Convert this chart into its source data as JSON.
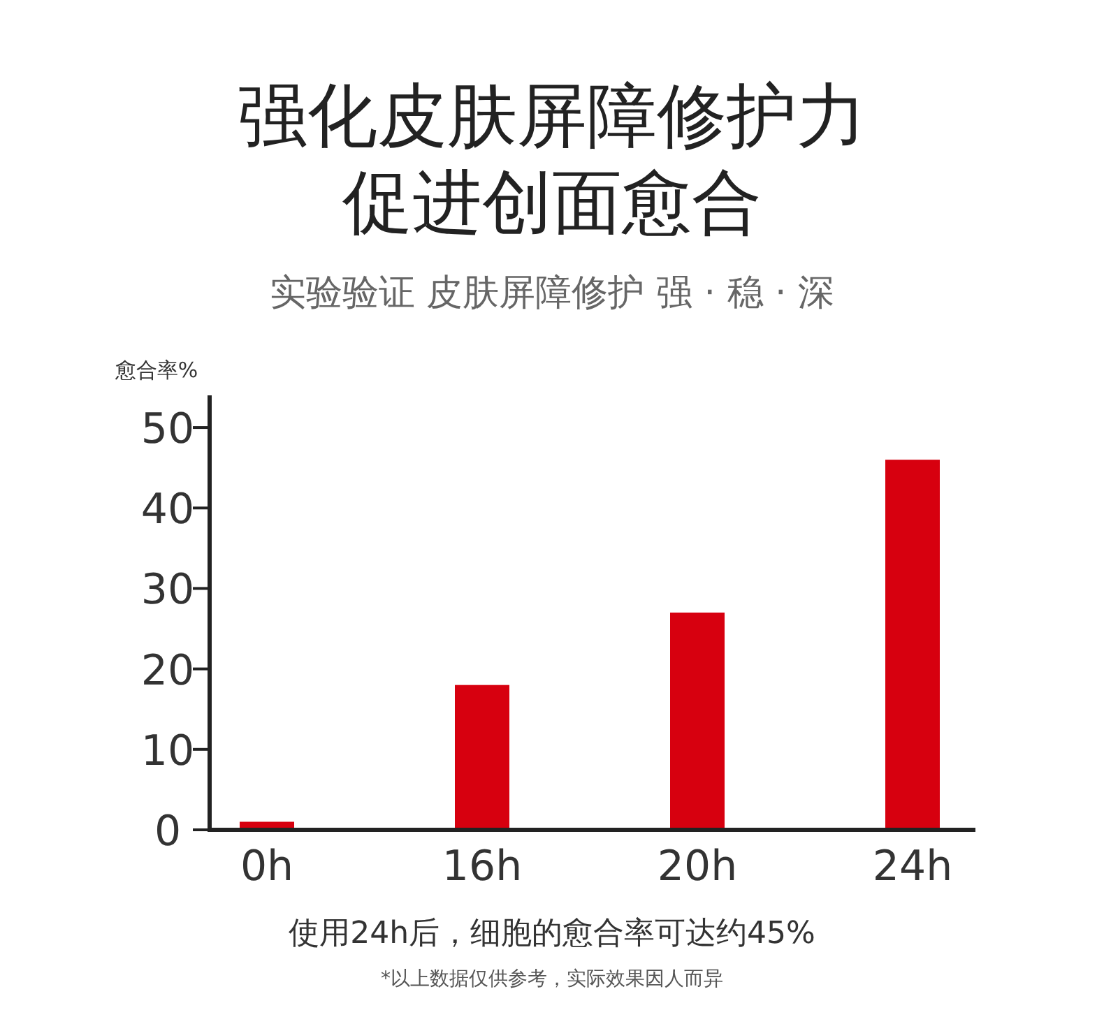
{
  "chart_data": {
    "type": "bar",
    "title": "强化皮肤屏障修护力促进创面愈合",
    "subtitle": "实验验证 皮肤屏障修护 强 · 稳 · 深",
    "ylabel": "愈合率%",
    "categories": [
      "0h",
      "16h",
      "20h",
      "24h"
    ],
    "values": [
      1,
      18,
      27,
      46
    ],
    "color": "#d7000f",
    "ylim": [
      0,
      54
    ],
    "yticks": [
      0,
      10,
      20,
      30,
      40,
      50
    ],
    "annotations": [
      "使用24h后，细胞的愈合率可达约45%",
      "*以上数据仅供参考，实际效果因人而异"
    ]
  }
}
